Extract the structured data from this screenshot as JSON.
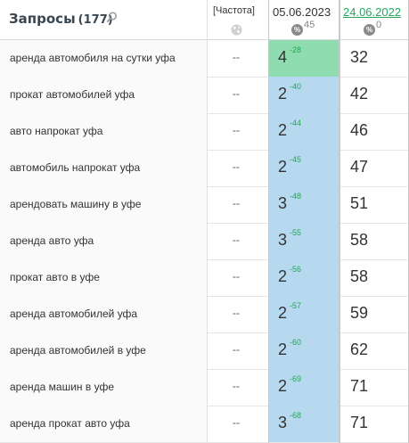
{
  "header": {
    "query_title": "Запросы",
    "query_count": "(177)",
    "freq_label": "[Частота]",
    "date1": "05.06.2023",
    "date1_num": "45",
    "date2": "24.06.2022",
    "date2_num": "0",
    "pct_symbol": "%"
  },
  "icons": {
    "search": "search-icon",
    "globe": "globe-icon",
    "percent": "percent-icon"
  },
  "colors": {
    "top_position_bg": "#8fdcb0",
    "position_bg": "#b6d9f0",
    "delta_green": "#1fa84f",
    "link_green": "#26a65b"
  },
  "rows": [
    {
      "query": "аренда автомобиля на сутки уфа",
      "freq": "--",
      "pos": "4",
      "delta": "-28",
      "prev": "32"
    },
    {
      "query": "прокат автомобилей уфа",
      "freq": "--",
      "pos": "2",
      "delta": "-40",
      "prev": "42"
    },
    {
      "query": "авто напрокат уфа",
      "freq": "--",
      "pos": "2",
      "delta": "-44",
      "prev": "46"
    },
    {
      "query": "автомобиль напрокат уфа",
      "freq": "--",
      "pos": "2",
      "delta": "-45",
      "prev": "47"
    },
    {
      "query": "арендовать машину в уфе",
      "freq": "--",
      "pos": "3",
      "delta": "-48",
      "prev": "51"
    },
    {
      "query": "аренда авто уфа",
      "freq": "--",
      "pos": "3",
      "delta": "-55",
      "prev": "58"
    },
    {
      "query": "прокат авто в уфе",
      "freq": "--",
      "pos": "2",
      "delta": "-56",
      "prev": "58"
    },
    {
      "query": "аренда автомобилей уфа",
      "freq": "--",
      "pos": "2",
      "delta": "-57",
      "prev": "59"
    },
    {
      "query": "аренда автомобилей в уфе",
      "freq": "--",
      "pos": "2",
      "delta": "-60",
      "prev": "62"
    },
    {
      "query": "аренда машин в уфе",
      "freq": "--",
      "pos": "2",
      "delta": "-69",
      "prev": "71"
    },
    {
      "query": "аренда прокат авто уфа",
      "freq": "--",
      "pos": "3",
      "delta": "-68",
      "prev": "71"
    }
  ]
}
